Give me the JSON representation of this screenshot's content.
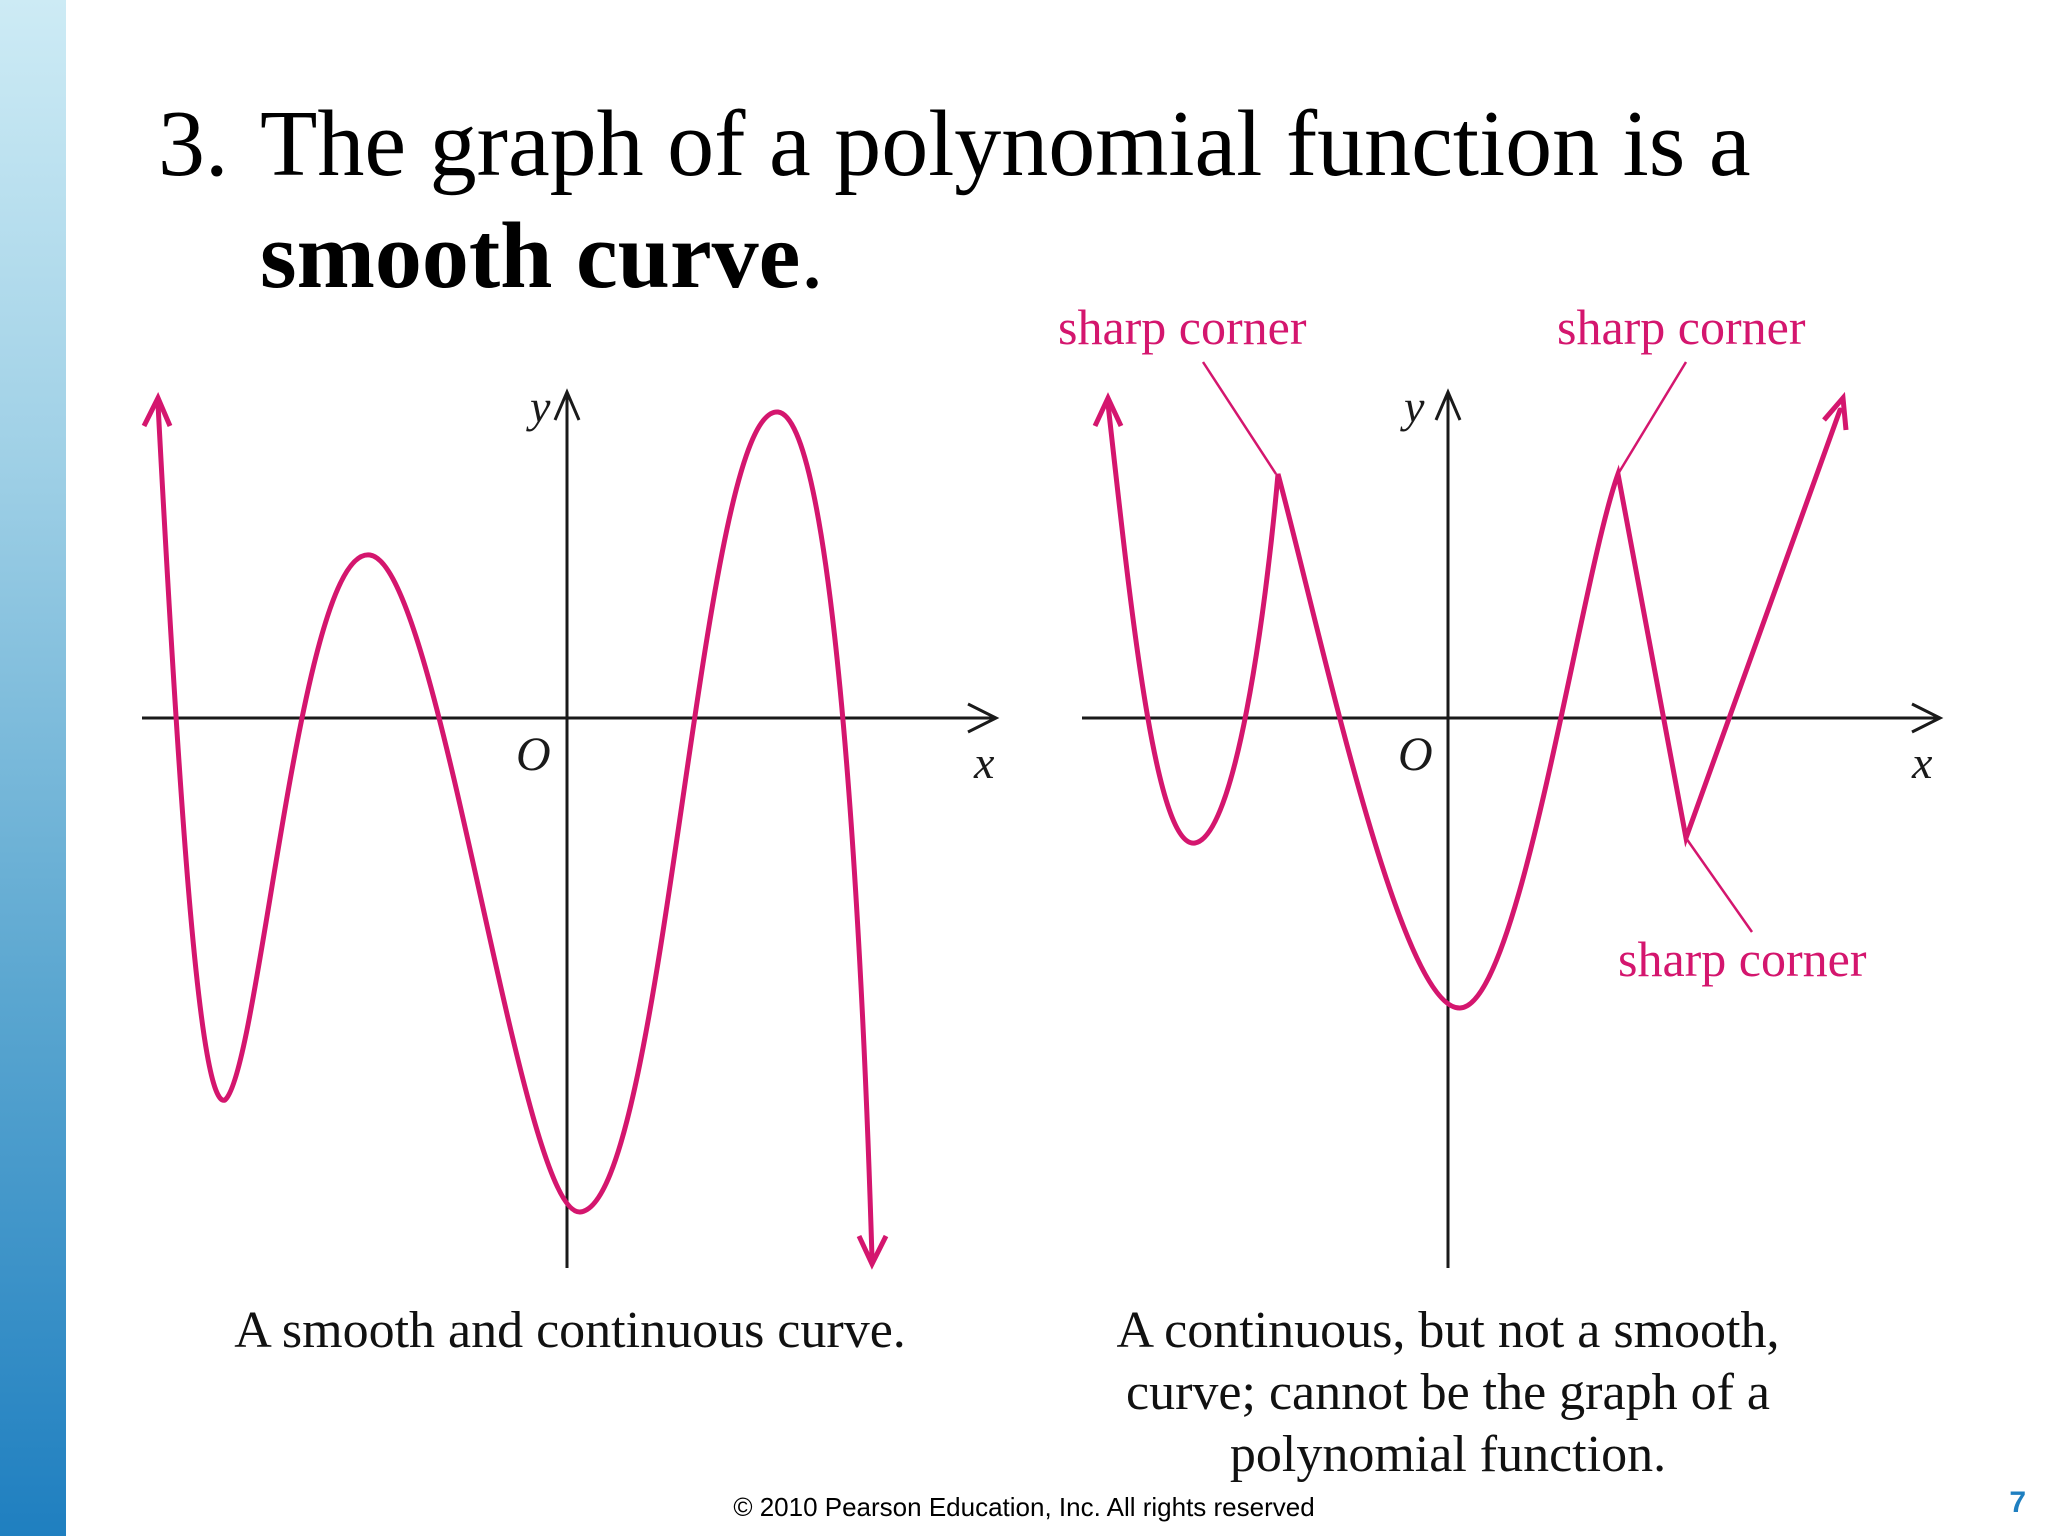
{
  "slide": {
    "title_number": "3.",
    "title_line1": "The graph of a polynomial function is a",
    "title_bold": "smooth curve",
    "title_end": ".",
    "footer": "© 2010 Pearson Education, Inc.  All rights reserved",
    "page_number": "7"
  },
  "left_graph": {
    "y_label": "y",
    "x_label": "x",
    "origin_label": "O",
    "caption": "A smooth and continuous curve."
  },
  "right_graph": {
    "y_label": "y",
    "x_label": "x",
    "origin_label": "O",
    "annotation_1": "sharp corner",
    "annotation_2": "sharp corner",
    "annotation_3": "sharp corner",
    "caption_line1": "A continuous, but not a smooth,",
    "caption_line2": "curve; cannot be the graph of a",
    "caption_line3": "polynomial function."
  },
  "colors": {
    "curve": "#d4166e",
    "axis": "#1a1a1a",
    "sidebar_top": "#cdebf5",
    "sidebar_bottom": "#1f7fc0"
  }
}
